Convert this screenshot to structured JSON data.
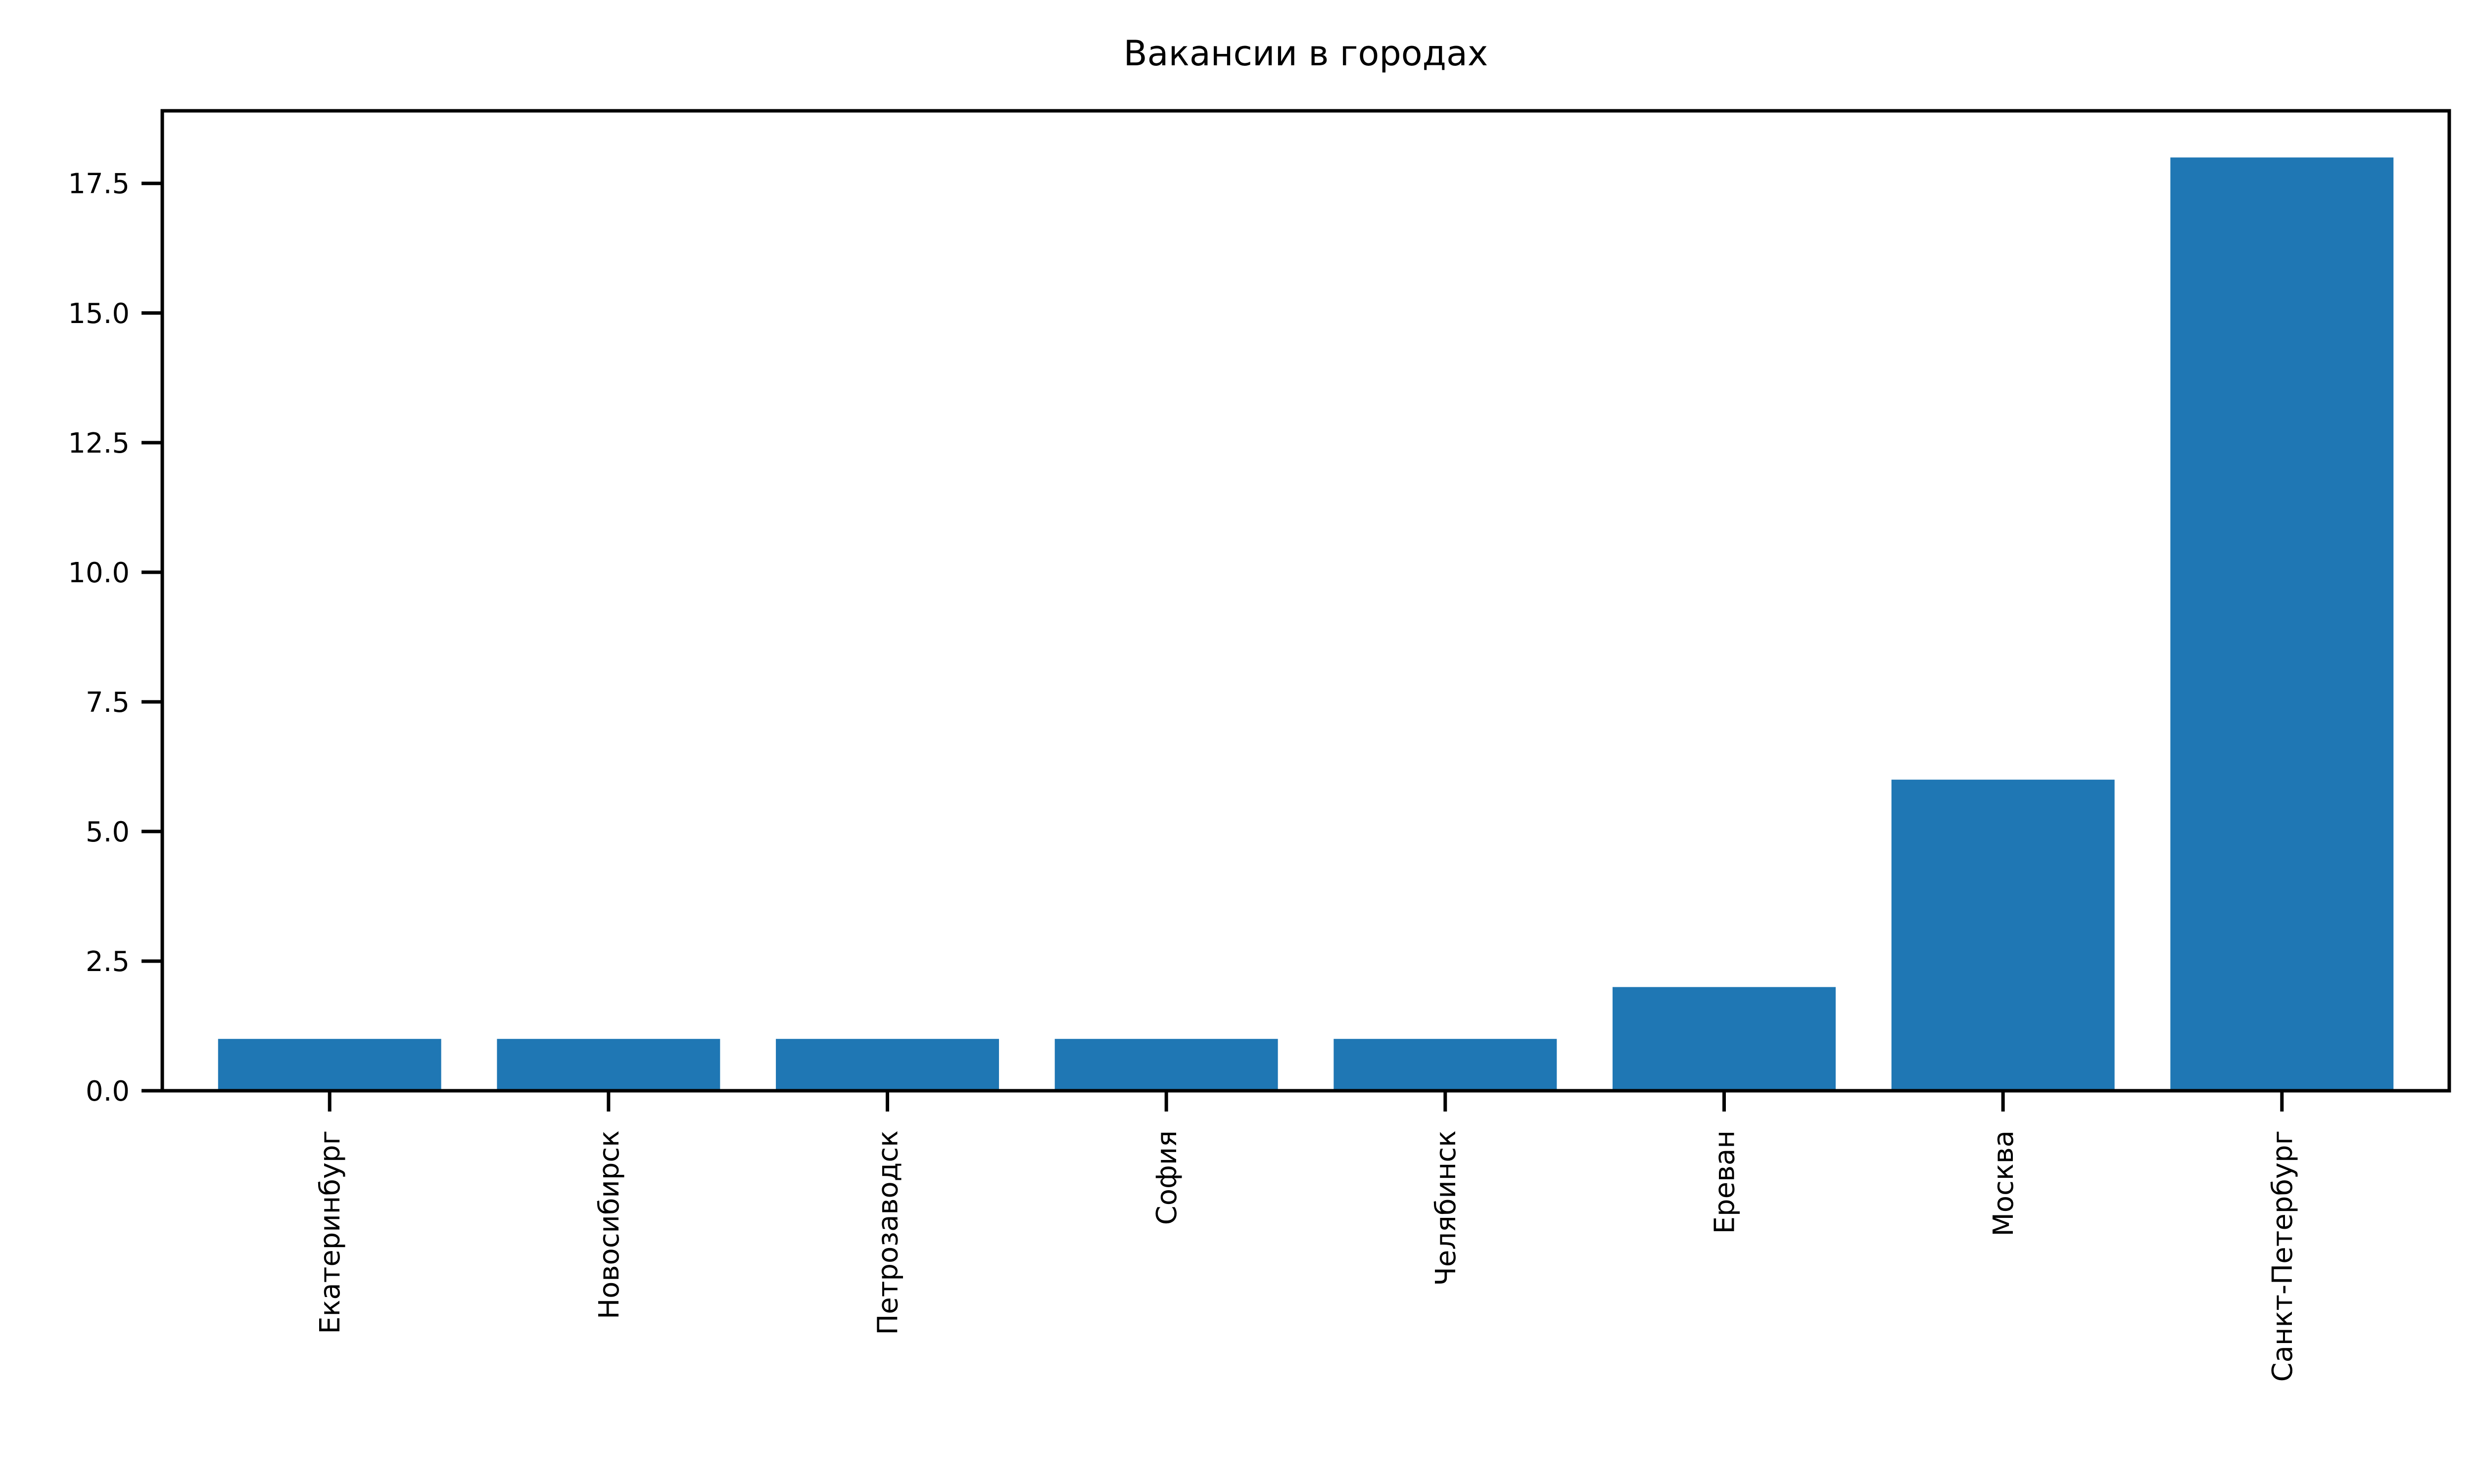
{
  "chart_data": {
    "type": "bar",
    "title": "Вакансии в городах",
    "xlabel": "",
    "ylabel": "",
    "categories": [
      "Екатеринбург",
      "Новосибирск",
      "Петрозаводск",
      "София",
      "Челябинск",
      "Ереван",
      "Москва",
      "Санкт-Петербург"
    ],
    "values": [
      1,
      1,
      1,
      1,
      1,
      2,
      6,
      18
    ],
    "ylim": [
      0,
      18.9
    ],
    "yticks": [
      0.0,
      2.5,
      5.0,
      7.5,
      10.0,
      12.5,
      15.0,
      17.5
    ],
    "ytick_labels": [
      "0.0",
      "2.5",
      "5.0",
      "7.5",
      "10.0",
      "12.5",
      "15.0",
      "17.5"
    ],
    "grid": false,
    "bar_color": "#1f77b4"
  }
}
